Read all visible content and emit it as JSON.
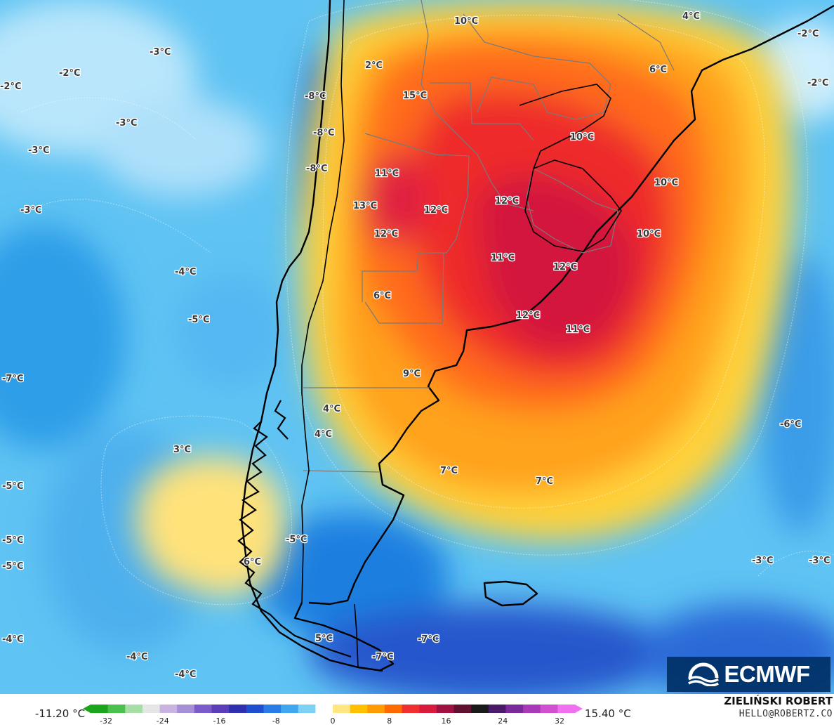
{
  "map": {
    "labels": [
      {
        "text": "10°C"
      },
      {
        "text": "4°C"
      },
      {
        "text": "-2°C"
      },
      {
        "text": "-3°C"
      },
      {
        "text": "-2°C"
      },
      {
        "text": "2°C"
      },
      {
        "text": "6°C"
      },
      {
        "text": "-2°C"
      },
      {
        "text": "-2°C"
      },
      {
        "text": "-8°C"
      },
      {
        "text": "15°C"
      },
      {
        "text": "-3°C"
      },
      {
        "text": "-8°C"
      },
      {
        "text": "10°C"
      },
      {
        "text": "-3°C"
      },
      {
        "text": "-8°C"
      },
      {
        "text": "11°C"
      },
      {
        "text": "10°C"
      },
      {
        "text": "12°C"
      },
      {
        "text": "13°C"
      },
      {
        "text": "12°C"
      },
      {
        "text": "-3°C"
      },
      {
        "text": "12°C"
      },
      {
        "text": "10°C"
      },
      {
        "text": "11°C"
      },
      {
        "text": "12°C"
      },
      {
        "text": "-4°C"
      },
      {
        "text": "6°C"
      },
      {
        "text": "12°C"
      },
      {
        "text": "-5°C"
      },
      {
        "text": "11°C"
      },
      {
        "text": "9°C"
      },
      {
        "text": "-7°C"
      },
      {
        "text": "4°C"
      },
      {
        "text": "4°C"
      },
      {
        "text": "3°C"
      },
      {
        "text": "-6°C"
      },
      {
        "text": "7°C"
      },
      {
        "text": "7°C"
      },
      {
        "text": "-5°C"
      },
      {
        "text": "-5°C"
      },
      {
        "text": "-5°C"
      },
      {
        "text": "6°C"
      },
      {
        "text": "-5°C"
      },
      {
        "text": "-3°C"
      },
      {
        "text": "-3°C"
      },
      {
        "text": "-4°C"
      },
      {
        "text": "5°C"
      },
      {
        "text": "-7°C"
      },
      {
        "text": "-4°C"
      },
      {
        "text": "-7°C"
      },
      {
        "text": "-4°C"
      }
    ]
  },
  "colorbar": {
    "min_label": "-11.20 °C",
    "max_label": "15.40 °C",
    "ticks": [
      "-32",
      "-24",
      "-16",
      "-8",
      "0",
      "8",
      "16",
      "24",
      "32"
    ],
    "colors": [
      "#1aa51a",
      "#4cc04c",
      "#a6dea6",
      "#e6e6e6",
      "#c9b3e0",
      "#a58fd6",
      "#7b5bc9",
      "#5a3fb8",
      "#2f2fb0",
      "#1f4fd0",
      "#2a7be8",
      "#3fa6f0",
      "#7fd0f5",
      "#ffffff",
      "#ffe680",
      "#ffc000",
      "#ff9a00",
      "#ff6a00",
      "#f03030",
      "#d81a3c",
      "#a01040",
      "#601030",
      "#1a1a1a",
      "#4a1a6a",
      "#7a2a9a",
      "#a83ab8",
      "#d050d0",
      "#f070f0"
    ]
  },
  "credits": {
    "author": "ZIELIŃSKI ROBERT",
    "contact": "HELLO@ROBERTZ.CO",
    "logo_text": "ECMWF"
  }
}
